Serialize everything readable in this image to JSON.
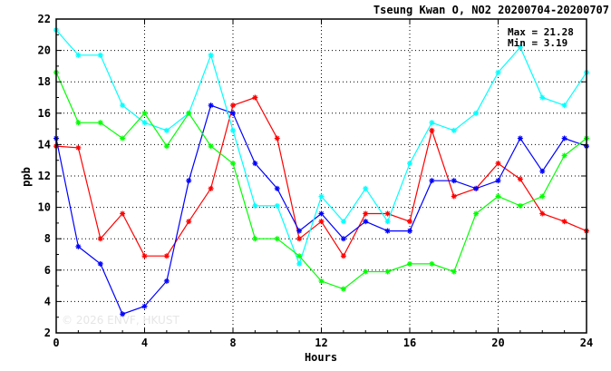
{
  "chart_data": {
    "type": "line",
    "title": "Tseung Kwan O, NO2 20200704-20200707",
    "xlabel": "Hours",
    "ylabel": "ppb",
    "xlim": [
      0,
      24
    ],
    "ylim": [
      2,
      22
    ],
    "xticks": [
      0,
      4,
      8,
      12,
      16,
      20,
      24
    ],
    "yticks": [
      2,
      4,
      6,
      8,
      10,
      12,
      14,
      16,
      18,
      20,
      22
    ],
    "grid": true,
    "stats": {
      "max_label": "Max = 21.28",
      "min_label": "Min =  3.19"
    },
    "watermark": "© 2026  ENVF, HKUST",
    "x": [
      0,
      1,
      2,
      3,
      4,
      5,
      6,
      7,
      8,
      9,
      10,
      11,
      12,
      13,
      14,
      15,
      16,
      17,
      18,
      19,
      20,
      21,
      22,
      23,
      24
    ],
    "series": [
      {
        "color": "#ff0000",
        "values": [
          13.9,
          13.8,
          8.0,
          9.6,
          6.9,
          6.9,
          9.1,
          11.2,
          16.5,
          17.0,
          14.4,
          8.0,
          9.1,
          6.9,
          9.6,
          9.6,
          9.1,
          14.9,
          10.7,
          11.2,
          12.8,
          11.8,
          9.6,
          9.1,
          8.5
        ]
      },
      {
        "color": "#0000ff",
        "values": [
          14.4,
          7.5,
          6.4,
          3.2,
          3.7,
          5.3,
          11.7,
          16.5,
          16.0,
          12.8,
          11.2,
          8.5,
          9.6,
          8.0,
          9.1,
          8.5,
          8.5,
          11.7,
          11.7,
          11.2,
          11.7,
          14.4,
          12.3,
          14.4,
          13.9
        ]
      },
      {
        "color": "#00ffff",
        "values": [
          21.3,
          19.7,
          19.7,
          16.5,
          15.4,
          14.9,
          16.0,
          19.7,
          14.9,
          10.1,
          10.1,
          6.4,
          10.7,
          9.1,
          11.2,
          9.1,
          12.8,
          15.4,
          14.9,
          16.0,
          18.6,
          20.2,
          17.0,
          16.5,
          18.6
        ]
      },
      {
        "color": "#00ff00",
        "values": [
          18.6,
          15.4,
          15.4,
          14.4,
          16.0,
          13.9,
          16.0,
          13.9,
          12.8,
          8.0,
          8.0,
          6.9,
          5.3,
          4.8,
          5.9,
          5.9,
          6.4,
          6.4,
          5.9,
          9.6,
          10.7,
          10.1,
          10.7,
          13.3,
          14.4
        ]
      }
    ]
  }
}
